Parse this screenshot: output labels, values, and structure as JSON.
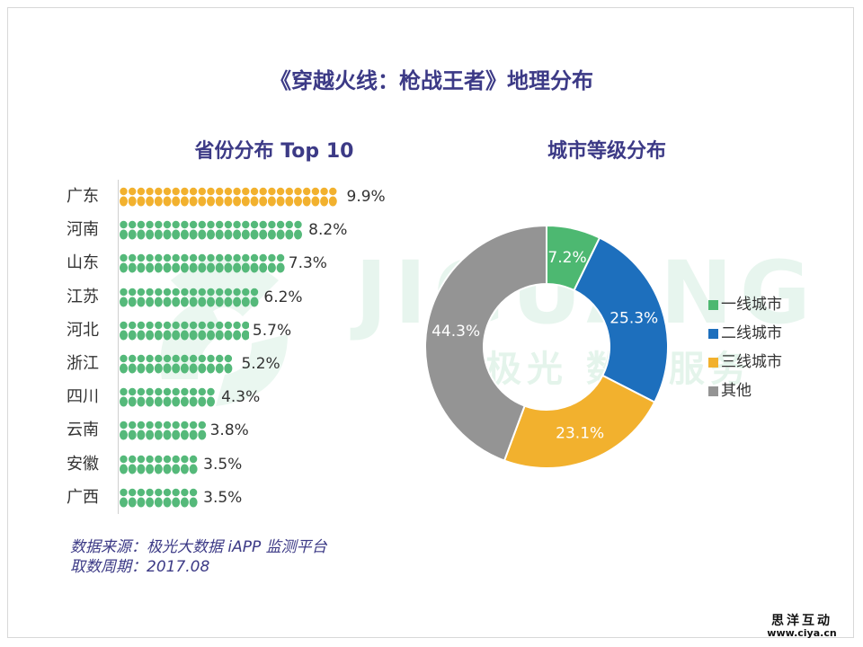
{
  "title": "《穿越火线：枪战王者》地理分布",
  "watermark": {
    "text": "JIGUANG",
    "subtext": "极光 数据服务"
  },
  "left_chart_title": "省份分布 Top 10",
  "right_chart_title": "城市等级分布",
  "source_line1": "数据来源：极光大数据 iAPP 监测平台",
  "source_line2": "取数周期：2017.08",
  "brand": {
    "name": "思洋互动",
    "url": "www.ciya.cn"
  },
  "colors": {
    "title": "#3c3a86",
    "highlight": "#f2b12e",
    "bar": "#55b97a",
    "tier1": "#4db871",
    "tier2": "#1d6fbd",
    "tier3": "#f2b12e",
    "other": "#949494"
  },
  "chart_data": [
    {
      "type": "bar",
      "title": "省份分布 Top 10",
      "categories": [
        "广东",
        "河南",
        "山东",
        "江苏",
        "河北",
        "浙江",
        "四川",
        "云南",
        "安徽",
        "广西"
      ],
      "values": [
        9.9,
        8.2,
        7.3,
        6.2,
        5.7,
        5.2,
        4.3,
        3.8,
        3.5,
        3.5
      ],
      "value_labels": [
        "9.9%",
        "8.2%",
        "7.3%",
        "6.2%",
        "5.7%",
        "5.2%",
        "4.3%",
        "3.8%",
        "3.5%",
        "3.5%"
      ],
      "unit": "%",
      "highlight_index": 0
    },
    {
      "type": "pie",
      "title": "城市等级分布",
      "labels": [
        "一线城市",
        "二线城市",
        "三线城市",
        "其他"
      ],
      "values": [
        7.2,
        25.3,
        23.1,
        44.3
      ],
      "value_labels": [
        "7.2%",
        "25.3%",
        "23.1%",
        "44.3%"
      ],
      "colors": [
        "#4db871",
        "#1d6fbd",
        "#f2b12e",
        "#949494"
      ],
      "legend": "right"
    }
  ]
}
